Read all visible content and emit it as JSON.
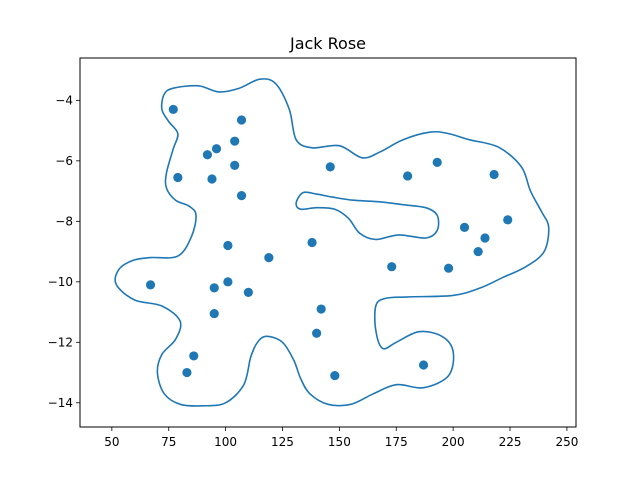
{
  "chart_data": {
    "type": "scatter",
    "title": "Jack Rose",
    "xlabel": "",
    "ylabel": "",
    "xlim": [
      36,
      254
    ],
    "ylim": [
      -14.8,
      -2.6
    ],
    "grid": false,
    "xticks": [
      50,
      75,
      100,
      125,
      150,
      175,
      200,
      225,
      250
    ],
    "yticks": [
      -4,
      -6,
      -8,
      -10,
      -12,
      -14
    ],
    "point_color": "#1f77b4",
    "line_color": "#1f77b4",
    "points": [
      {
        "x": 77,
        "y": -4.3
      },
      {
        "x": 107,
        "y": -4.65
      },
      {
        "x": 104,
        "y": -5.35
      },
      {
        "x": 96,
        "y": -5.6
      },
      {
        "x": 92,
        "y": -5.8
      },
      {
        "x": 104,
        "y": -6.15
      },
      {
        "x": 79,
        "y": -6.55
      },
      {
        "x": 94,
        "y": -6.6
      },
      {
        "x": 107,
        "y": -7.15
      },
      {
        "x": 101,
        "y": -8.8
      },
      {
        "x": 119,
        "y": -9.2
      },
      {
        "x": 138,
        "y": -8.7
      },
      {
        "x": 146,
        "y": -6.2
      },
      {
        "x": 180,
        "y": -6.5
      },
      {
        "x": 193,
        "y": -6.05
      },
      {
        "x": 218,
        "y": -6.45
      },
      {
        "x": 224,
        "y": -7.95
      },
      {
        "x": 205,
        "y": -8.2
      },
      {
        "x": 214,
        "y": -8.55
      },
      {
        "x": 211,
        "y": -9.0
      },
      {
        "x": 173,
        "y": -9.5
      },
      {
        "x": 198,
        "y": -9.55
      },
      {
        "x": 67,
        "y": -10.1
      },
      {
        "x": 95,
        "y": -10.2
      },
      {
        "x": 101,
        "y": -10.0
      },
      {
        "x": 110,
        "y": -10.35
      },
      {
        "x": 142,
        "y": -10.9
      },
      {
        "x": 95,
        "y": -11.05
      },
      {
        "x": 140,
        "y": -11.7
      },
      {
        "x": 86,
        "y": -12.45
      },
      {
        "x": 83,
        "y": -13.0
      },
      {
        "x": 148,
        "y": -13.1
      },
      {
        "x": 187,
        "y": -12.75
      }
    ],
    "contours": [
      [
        [
          77,
          -3.6
        ],
        [
          88,
          -3.52
        ],
        [
          97,
          -3.72
        ],
        [
          106,
          -3.6
        ],
        [
          115,
          -3.3
        ],
        [
          122,
          -3.45
        ],
        [
          128,
          -4.3
        ],
        [
          131,
          -5.3
        ],
        [
          138,
          -5.57
        ],
        [
          150,
          -5.5
        ],
        [
          160,
          -5.9
        ],
        [
          168,
          -5.7
        ],
        [
          178,
          -5.3
        ],
        [
          190,
          -5.05
        ],
        [
          198,
          -5.1
        ],
        [
          207,
          -5.3
        ],
        [
          220,
          -5.55
        ],
        [
          230,
          -6.2
        ],
        [
          234,
          -7.0
        ],
        [
          239,
          -7.7
        ],
        [
          242,
          -8.2
        ],
        [
          240,
          -9.0
        ],
        [
          232,
          -9.5
        ],
        [
          222,
          -9.85
        ],
        [
          212,
          -10.2
        ],
        [
          200,
          -10.45
        ],
        [
          180,
          -10.5
        ],
        [
          170,
          -10.55
        ],
        [
          166,
          -10.8
        ],
        [
          166,
          -11.6
        ],
        [
          169,
          -12.2
        ],
        [
          175,
          -12.0
        ],
        [
          185,
          -11.65
        ],
        [
          195,
          -11.8
        ],
        [
          200,
          -12.3
        ],
        [
          198,
          -13.1
        ],
        [
          187,
          -13.5
        ],
        [
          175,
          -13.4
        ],
        [
          165,
          -13.7
        ],
        [
          155,
          -14.05
        ],
        [
          145,
          -14.05
        ],
        [
          137,
          -13.7
        ],
        [
          133,
          -13.2
        ],
        [
          130,
          -12.6
        ],
        [
          125,
          -12.0
        ],
        [
          118,
          -11.8
        ],
        [
          114,
          -12.0
        ],
        [
          111,
          -12.5
        ],
        [
          108,
          -13.4
        ],
        [
          100,
          -14.0
        ],
        [
          90,
          -14.1
        ],
        [
          80,
          -14.05
        ],
        [
          73,
          -13.7
        ],
        [
          70,
          -13.0
        ],
        [
          72,
          -12.4
        ],
        [
          78,
          -11.9
        ],
        [
          80,
          -11.3
        ],
        [
          72,
          -10.8
        ],
        [
          60,
          -10.6
        ],
        [
          52,
          -10.1
        ],
        [
          53,
          -9.6
        ],
        [
          59,
          -9.3
        ],
        [
          67,
          -9.2
        ],
        [
          79,
          -9.15
        ],
        [
          85,
          -8.5
        ],
        [
          87,
          -7.8
        ],
        [
          84,
          -7.5
        ],
        [
          78,
          -7.3
        ],
        [
          74,
          -6.9
        ],
        [
          74,
          -6.4
        ],
        [
          77,
          -5.6
        ],
        [
          79,
          -5.1
        ],
        [
          75,
          -4.7
        ],
        [
          72,
          -4.3
        ],
        [
          73,
          -3.8
        ],
        [
          77,
          -3.6
        ]
      ],
      [
        [
          131,
          -7.4
        ],
        [
          134,
          -7.05
        ],
        [
          140,
          -7.1
        ],
        [
          147,
          -7.2
        ],
        [
          156,
          -7.3
        ],
        [
          167,
          -7.35
        ],
        [
          178,
          -7.45
        ],
        [
          188,
          -7.55
        ],
        [
          193,
          -7.8
        ],
        [
          193,
          -8.3
        ],
        [
          188,
          -8.55
        ],
        [
          176,
          -8.45
        ],
        [
          166,
          -8.6
        ],
        [
          159,
          -8.4
        ],
        [
          154,
          -7.9
        ],
        [
          148,
          -7.6
        ],
        [
          140,
          -7.55
        ],
        [
          133,
          -7.6
        ],
        [
          131,
          -7.4
        ]
      ]
    ]
  }
}
